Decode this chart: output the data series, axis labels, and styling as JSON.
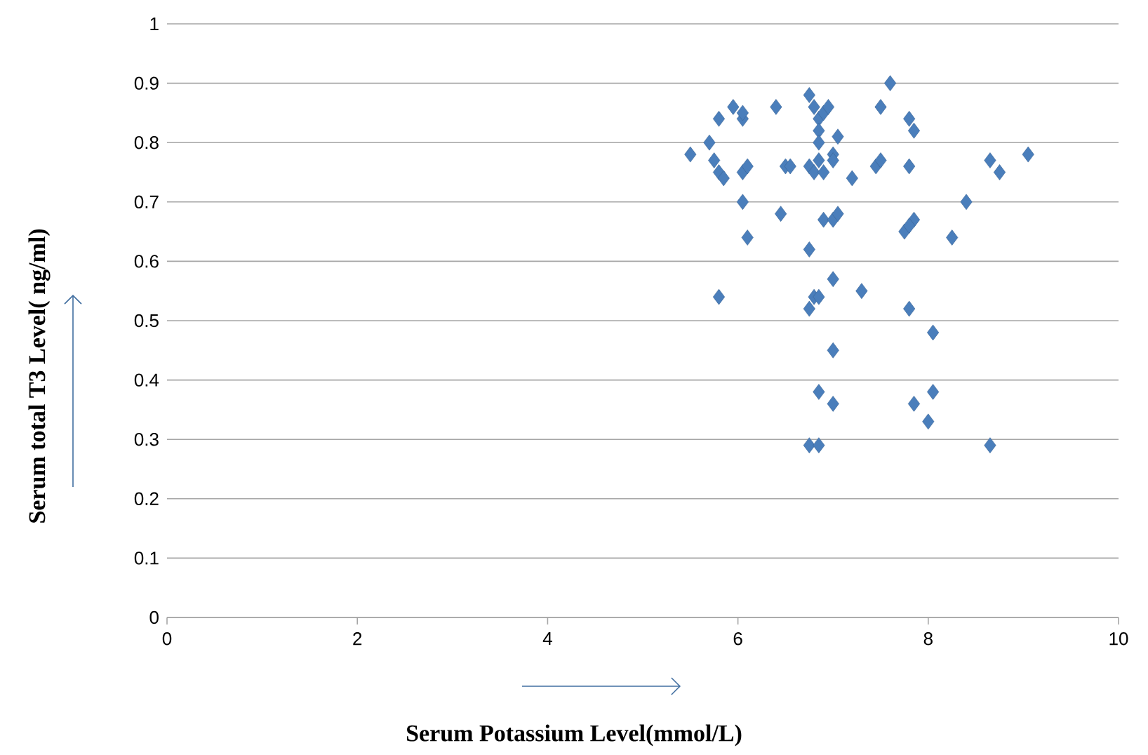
{
  "chart_data": {
    "type": "scatter",
    "xlabel": "Serum Potassium Level(mmol/L)",
    "ylabel": "Serum total T3 Level( ng/ml)",
    "xlim": [
      0,
      10
    ],
    "xticks": [
      0,
      2,
      4,
      6,
      8,
      10
    ],
    "ylim": [
      0,
      1
    ],
    "yticks": [
      0,
      0.1,
      0.2,
      0.3,
      0.4,
      0.5,
      0.6,
      0.7,
      0.8,
      0.9,
      1
    ],
    "grid": "y",
    "marker": "diamond",
    "series": [
      {
        "color": "#4a7ebb",
        "x": [
          5.5,
          5.7,
          5.75,
          5.8,
          5.85,
          5.8,
          5.95,
          6.05,
          6.05,
          6.05,
          6.1,
          6.05,
          6.1,
          5.8,
          6.4,
          6.5,
          6.55,
          6.45,
          6.75,
          6.8,
          6.85,
          6.85,
          6.9,
          6.95,
          6.85,
          7.0,
          7.05,
          6.75,
          6.8,
          6.85,
          6.9,
          7.0,
          7.2,
          6.9,
          7.0,
          7.05,
          6.75,
          7.0,
          6.8,
          6.85,
          6.75,
          7.3,
          7.0,
          6.85,
          7.0,
          6.75,
          6.85,
          7.45,
          7.5,
          7.5,
          7.6,
          7.8,
          7.85,
          7.8,
          7.75,
          7.85,
          7.8,
          7.8,
          8.05,
          7.85,
          8.05,
          8.0,
          8.25,
          8.4,
          8.65,
          8.75,
          9.05,
          8.65
        ],
        "values": [
          0.78,
          0.8,
          0.77,
          0.75,
          0.74,
          0.84,
          0.86,
          0.84,
          0.85,
          0.75,
          0.76,
          0.7,
          0.64,
          0.54,
          0.86,
          0.76,
          0.76,
          0.68,
          0.88,
          0.86,
          0.84,
          0.82,
          0.85,
          0.86,
          0.8,
          0.78,
          0.81,
          0.76,
          0.75,
          0.77,
          0.75,
          0.77,
          0.74,
          0.67,
          0.67,
          0.68,
          0.62,
          0.57,
          0.54,
          0.54,
          0.52,
          0.55,
          0.45,
          0.38,
          0.36,
          0.29,
          0.29,
          0.76,
          0.77,
          0.86,
          0.9,
          0.84,
          0.82,
          0.76,
          0.65,
          0.67,
          0.66,
          0.52,
          0.48,
          0.36,
          0.38,
          0.33,
          0.64,
          0.7,
          0.77,
          0.75,
          0.78,
          0.29
        ]
      }
    ]
  }
}
